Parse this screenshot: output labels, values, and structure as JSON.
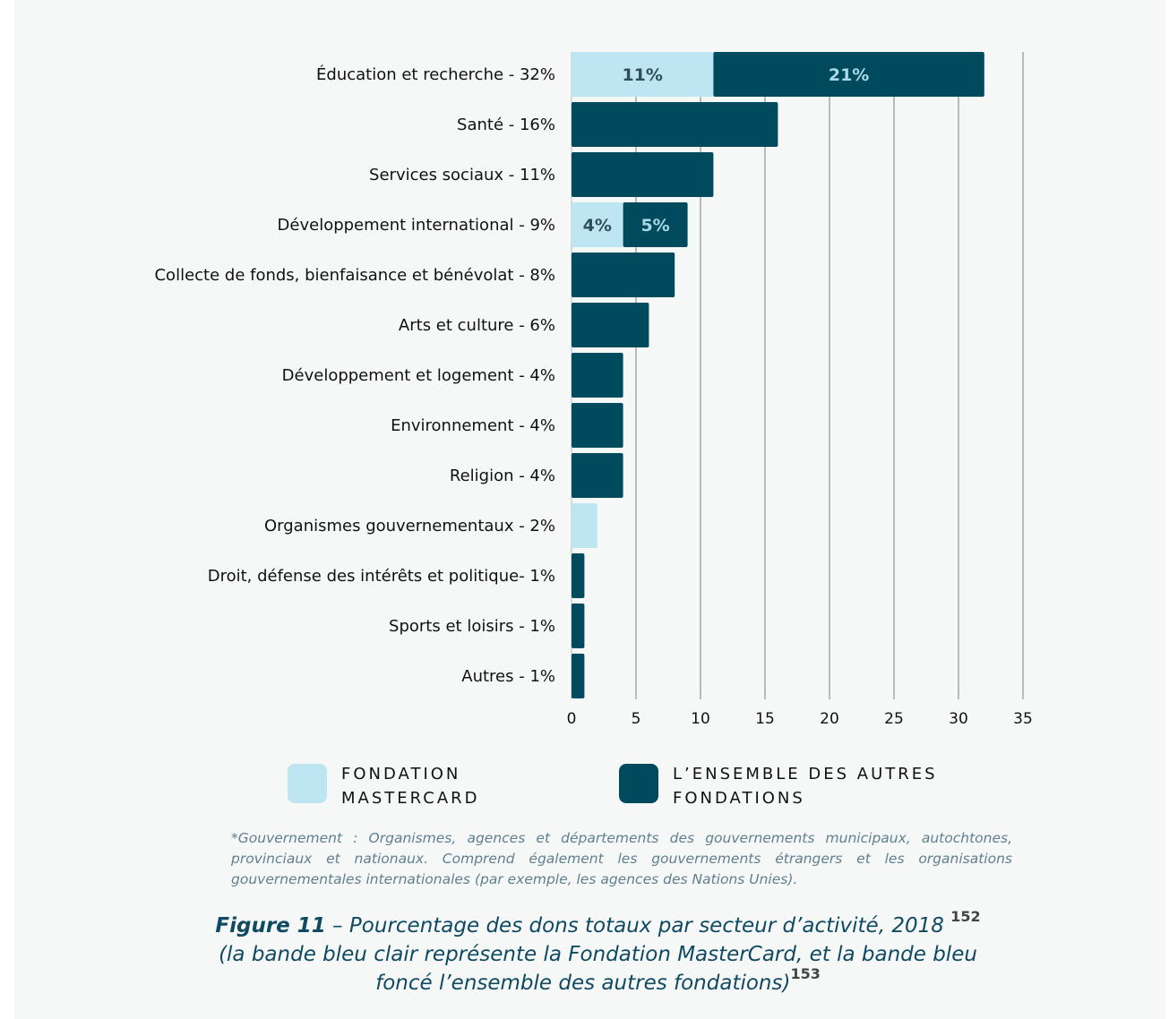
{
  "chart_data": {
    "type": "bar",
    "orientation": "horizontal",
    "stacked": true,
    "categories": [
      "Éducation et recherche - 32%",
      "Santé - 16%",
      "Services sociaux - 11%",
      "Développement international - 9%",
      "Collecte de fonds, bienfaisance et bénévolat - 8%",
      "Arts et culture - 6%",
      "Développement et logement - 4%",
      "Environnement - 4%",
      "Religion - 4%",
      "Organismes gouvernementaux - 2%",
      "Droit, défense des intérêts et politique- 1%",
      "Sports et loisirs - 1%",
      "Autres - 1%"
    ],
    "series": [
      {
        "name": "FONDATION MASTERCARD",
        "color": "#bde5f2",
        "label_color": "#2f4f5c",
        "values": [
          11,
          0,
          0,
          4,
          0,
          0,
          0,
          0,
          0,
          2,
          0,
          0,
          0
        ],
        "data_labels": [
          "11%",
          "",
          "",
          "4%",
          "",
          "",
          "",
          "",
          "",
          "",
          "",
          "",
          ""
        ]
      },
      {
        "name": "L’ENSEMBLE DES AUTRES FONDATIONS",
        "color": "#004a5e",
        "label_color": "#a9d9e6",
        "values": [
          21,
          16,
          11,
          5,
          8,
          6,
          4,
          4,
          4,
          0,
          1,
          1,
          1
        ],
        "data_labels": [
          "21%",
          "",
          "",
          "5%",
          "",
          "",
          "",
          "",
          "",
          "",
          "",
          "",
          ""
        ]
      }
    ],
    "xlim": [
      0,
      35
    ],
    "xticks": [
      0,
      5,
      10,
      15,
      20,
      25,
      30,
      35
    ],
    "grid": "vertical",
    "legend_position": "bottom"
  },
  "legend": [
    {
      "text": "FONDATION MASTERCARD",
      "color": "#bde5f2"
    },
    {
      "text": "L’ENSEMBLE DES AUTRES FONDATIONS",
      "color": "#004a5e"
    }
  ],
  "footnote": "*Gouvernement : Organismes, agences et départements des gouvernements municipaux, autochtones, provinciaux et nationaux. Comprend également les gouvernements étrangers et les organisations gouvernementales internationales (par exemple, les agences des Nations Unies).",
  "caption": {
    "figure_label": "Figure 11",
    "part1": " – Pourcentage des dons totaux par secteur d’activité, 2018",
    "ref1": "152",
    "part2": "(la bande bleu clair représente la Fondation MasterCard, et la bande bleu foncé l’ensemble des autres fondations)",
    "ref2": "153"
  }
}
